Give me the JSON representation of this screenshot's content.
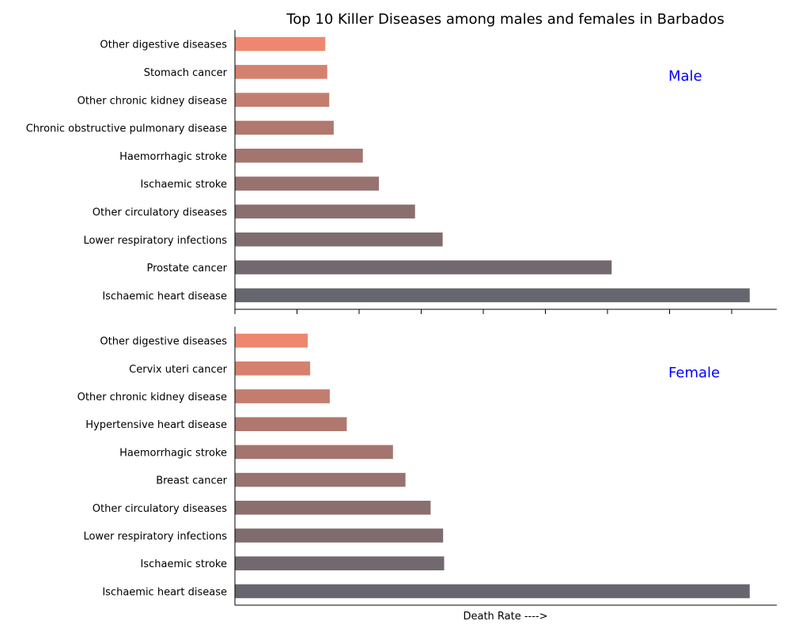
{
  "chart_data": {
    "type": "bar",
    "orientation": "horizontal",
    "title": "Top 10 Killer Diseases among males and females in Barbados",
    "xlabel": "Death Rate ---->",
    "x_tick_labels_shown": false,
    "xlim": [
      0,
      108
    ],
    "grid": false,
    "colors": [
      "#66666e",
      "#726970",
      "#7e6c6f",
      "#8b6f6f",
      "#97726e",
      "#a3756e",
      "#b0786e",
      "#c27d6f",
      "#d5816f",
      "#ee876f"
    ],
    "panels": [
      {
        "name": "Male",
        "label_color": "#0000ff",
        "categories": [
          "Ischaemic heart disease",
          "Prostate cancer",
          "Lower respiratory infections",
          "Other circulatory diseases",
          "Ischaemic stroke",
          "Haemorrhagic stroke",
          "Chronic obstructive pulmonary disease",
          "Other chronic kidney disease",
          "Stomach cancer",
          "Other digestive diseases"
        ],
        "values": [
          102.6,
          75.1,
          41.4,
          35.9,
          28.7,
          25.5,
          19.7,
          18.8,
          18.4,
          18.0
        ]
      },
      {
        "name": "Female",
        "label_color": "#0000ff",
        "categories": [
          "Ischaemic heart disease",
          "Ischaemic stroke",
          "Lower respiratory infections",
          "Other circulatory diseases",
          "Breast cancer",
          "Haemorrhagic stroke",
          "Hypertensive heart disease",
          "Other chronic kidney disease",
          "Cervix uteri cancer",
          "Other digestive diseases"
        ],
        "values": [
          102.6,
          41.7,
          41.5,
          39.0,
          34.0,
          31.5,
          22.3,
          18.9,
          15.0,
          14.5
        ]
      }
    ]
  }
}
